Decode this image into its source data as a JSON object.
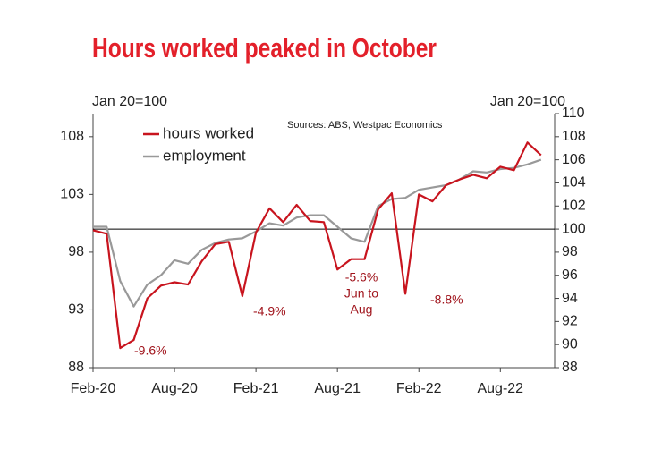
{
  "chart_data": {
    "type": "line",
    "title": "Hours worked peaked in October",
    "y_label": "Jan 20=100",
    "y2_label": "Jan 20=100",
    "source": "Sources: ABS, Westpac Economics",
    "categories": [
      "Feb-20",
      null,
      null,
      null,
      null,
      null,
      "Aug-20",
      null,
      null,
      null,
      null,
      null,
      "Feb-21",
      null,
      null,
      null,
      null,
      null,
      "Aug-21",
      null,
      null,
      null,
      null,
      null,
      "Feb-22",
      null,
      null,
      null,
      null,
      null,
      "Aug-22",
      null,
      null,
      null
    ],
    "series": [
      {
        "name": "hours worked",
        "color": "#c8141e",
        "values": [
          99.9,
          99.6,
          89.7,
          90.4,
          94.0,
          95.1,
          95.4,
          95.2,
          97.2,
          98.7,
          98.9,
          94.2,
          99.7,
          101.8,
          100.6,
          102.1,
          100.7,
          100.6,
          96.5,
          97.4,
          97.4,
          101.7,
          103.1,
          94.4,
          103.0,
          102.4,
          103.8,
          104.3,
          104.7,
          104.4,
          105.4,
          105.1,
          107.5,
          106.4
        ]
      },
      {
        "name": "employment",
        "color": "#999999",
        "values": [
          100.2,
          100.2,
          95.5,
          93.3,
          95.2,
          96.0,
          97.3,
          97.0,
          98.2,
          98.8,
          99.1,
          99.2,
          99.8,
          100.5,
          100.3,
          101.0,
          101.2,
          101.2,
          100.2,
          99.2,
          98.9,
          102.0,
          102.6,
          102.7,
          103.4,
          103.6,
          103.8,
          104.3,
          105.0,
          104.9,
          105.2,
          105.3,
          105.6,
          106.0
        ]
      }
    ],
    "ylim": [
      88,
      110
    ],
    "yticks": [
      88,
      93,
      98,
      103,
      108
    ],
    "y2lim": [
      88,
      110
    ],
    "y2ticks": [
      88,
      90,
      92,
      94,
      96,
      98,
      100,
      102,
      104,
      106,
      108,
      110
    ],
    "hline": 100,
    "legend": "upper left",
    "annotations": [
      {
        "lines": [
          "-9.6%"
        ]
      },
      {
        "lines": [
          "-4.9%"
        ]
      },
      {
        "lines": [
          "-5.6%",
          "Jun to",
          "Aug"
        ]
      },
      {
        "lines": [
          "-8.8%"
        ]
      }
    ],
    "annotation_color": "#a0141c"
  }
}
